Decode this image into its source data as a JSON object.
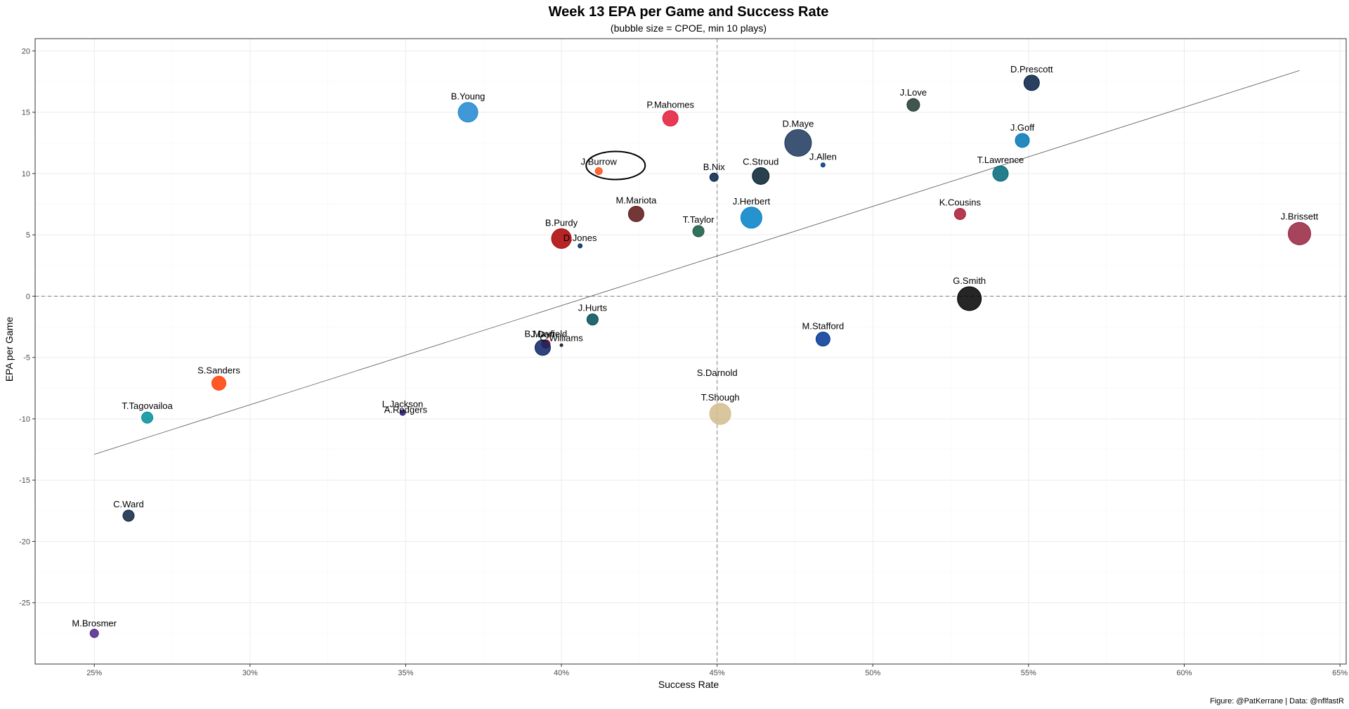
{
  "chart_data": {
    "type": "scatter",
    "title": "Week 13 EPA per Game and Success Rate",
    "subtitle": "(bubble size = CPOE, min 10 plays)",
    "xlabel": "Success Rate",
    "ylabel": "EPA per Game",
    "caption": "Figure: @PatKerrane | Data: @nflfastR",
    "xlim": [
      0.231,
      0.652
    ],
    "ylim": [
      -30,
      21
    ],
    "x_ticks": [
      0.25,
      0.3,
      0.35,
      0.4,
      0.45,
      0.5,
      0.55,
      0.6,
      0.65
    ],
    "x_tick_labels": [
      "25%",
      "30%",
      "35%",
      "40%",
      "45%",
      "50%",
      "55%",
      "60%",
      "65%"
    ],
    "y_ticks": [
      -25,
      -20,
      -15,
      -10,
      -5,
      0,
      5,
      10,
      15,
      20
    ],
    "y_tick_labels": [
      "-25",
      "-20",
      "-15",
      "-10",
      "-5",
      "0",
      "5",
      "10",
      "15",
      "20"
    ],
    "reference_lines": {
      "horizontal_y": 0,
      "vertical_x": 0.45
    },
    "trend_line": {
      "from": [
        0.25,
        -12.9
      ],
      "to": [
        0.637,
        18.4
      ]
    },
    "highlight": {
      "player": "J.Burrow"
    },
    "grid": true,
    "points": [
      {
        "name": "B.Young",
        "x": 0.37,
        "y": 15.0,
        "size": 14,
        "color": "#1E87CF"
      },
      {
        "name": "P.Mahomes",
        "x": 0.435,
        "y": 14.5,
        "size": 11,
        "color": "#E31837"
      },
      {
        "name": "J.Burrow",
        "x": 0.412,
        "y": 10.2,
        "size": 5,
        "color": "#FB4F14"
      },
      {
        "name": "D.Maye",
        "x": 0.476,
        "y": 12.5,
        "size": 19,
        "color": "#1B365D"
      },
      {
        "name": "J.Allen",
        "x": 0.484,
        "y": 10.7,
        "size": 3,
        "color": "#00338D"
      },
      {
        "name": "B.Nix",
        "x": 0.449,
        "y": 9.7,
        "size": 6,
        "color": "#002244"
      },
      {
        "name": "C.Stroud",
        "x": 0.464,
        "y": 9.8,
        "size": 12,
        "color": "#03202F"
      },
      {
        "name": "J.Love",
        "x": 0.513,
        "y": 15.6,
        "size": 9,
        "color": "#203731"
      },
      {
        "name": "D.Prescott",
        "x": 0.551,
        "y": 17.4,
        "size": 11,
        "color": "#041E42"
      },
      {
        "name": "J.Goff",
        "x": 0.548,
        "y": 12.7,
        "size": 10,
        "color": "#0076B6"
      },
      {
        "name": "T.Lawrence",
        "x": 0.541,
        "y": 10.0,
        "size": 11,
        "color": "#006778"
      },
      {
        "name": "K.Cousins",
        "x": 0.528,
        "y": 6.7,
        "size": 8,
        "color": "#A71930"
      },
      {
        "name": "J.Brissett",
        "x": 0.637,
        "y": 5.1,
        "size": 16,
        "color": "#97233F"
      },
      {
        "name": "M.Mariota",
        "x": 0.424,
        "y": 6.7,
        "size": 11,
        "color": "#5A1414"
      },
      {
        "name": "T.Taylor",
        "x": 0.444,
        "y": 5.3,
        "size": 8,
        "color": "#125740"
      },
      {
        "name": "J.Herbert",
        "x": 0.461,
        "y": 6.4,
        "size": 15,
        "color": "#0080C6"
      },
      {
        "name": "B.Purdy",
        "x": 0.4,
        "y": 4.7,
        "size": 14,
        "color": "#AA0000"
      },
      {
        "name": "D.Jones",
        "x": 0.406,
        "y": 4.1,
        "size": 3,
        "color": "#002C5F"
      },
      {
        "name": "G.Smith",
        "x": 0.531,
        "y": -0.2,
        "size": 17,
        "color": "#000000"
      },
      {
        "name": "J.Hurts",
        "x": 0.41,
        "y": -1.9,
        "size": 8,
        "color": "#004C54"
      },
      {
        "name": "M.Stafford",
        "x": 0.484,
        "y": -3.5,
        "size": 10,
        "color": "#003594"
      },
      {
        "name": "B.Mayfield",
        "x": 0.395,
        "y": -3.9,
        "size": 6,
        "color": "#D50A0A"
      },
      {
        "name": "J.Dart",
        "x": 0.394,
        "y": -4.2,
        "size": 11,
        "color": "#0B2265"
      },
      {
        "name": "C.Williams",
        "x": 0.4,
        "y": -4.0,
        "size": 2,
        "color": "#0B162A"
      },
      {
        "name": "S.Sanders",
        "x": 0.29,
        "y": -7.1,
        "size": 10,
        "color": "#FF3C00"
      },
      {
        "name": "S.Darnold",
        "x": 0.45,
        "y": -6.5,
        "size": 0,
        "color": "#002244"
      },
      {
        "name": "T.Tagovailoa",
        "x": 0.267,
        "y": -9.9,
        "size": 8,
        "color": "#008E97"
      },
      {
        "name": "L.Jackson",
        "x": 0.349,
        "y": -9.5,
        "size": 4,
        "color": "#241773"
      },
      {
        "name": "A.Rodgers",
        "x": 0.35,
        "y": -9.5,
        "size": 0,
        "color": "#FFB612"
      },
      {
        "name": "T.Shough",
        "x": 0.451,
        "y": -9.6,
        "size": 15,
        "color": "#D3BC8D"
      },
      {
        "name": "C.Ward",
        "x": 0.261,
        "y": -17.9,
        "size": 8,
        "color": "#0C2340"
      },
      {
        "name": "M.Brosmer",
        "x": 0.25,
        "y": -27.5,
        "size": 6,
        "color": "#4F2683"
      }
    ]
  }
}
